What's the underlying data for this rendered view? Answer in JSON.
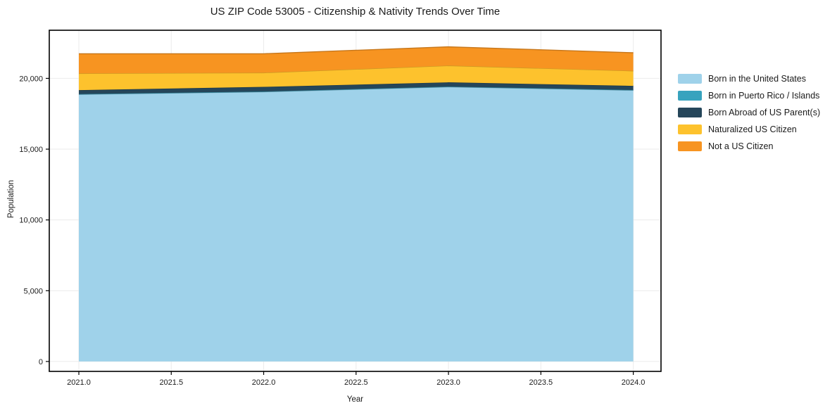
{
  "title": "US ZIP Code 53005 - Citizenship & Nativity Trends Over Time",
  "chart_data": {
    "type": "area",
    "stacked": true,
    "title": "US ZIP Code 53005 - Citizenship & Nativity Trends Over Time",
    "xlabel": "Year",
    "ylabel": "Population",
    "x": [
      2021,
      2022,
      2023,
      2024
    ],
    "xlim": [
      2020.84,
      2024.15
    ],
    "ylim": [
      -700,
      23400
    ],
    "grid": true,
    "legend_position": "right",
    "xticks": {
      "values": [
        2021.0,
        2021.5,
        2022.0,
        2022.5,
        2023.0,
        2023.5,
        2024.0
      ],
      "labels": [
        "2021.0",
        "2021.5",
        "2022.0",
        "2022.5",
        "2023.0",
        "2023.5",
        "2024.0"
      ]
    },
    "yticks": {
      "values": [
        0,
        5000,
        10000,
        15000,
        20000
      ],
      "labels": [
        "0",
        "5,000",
        "10,000",
        "15,000",
        "20,000"
      ]
    },
    "series": [
      {
        "name": "Born in the United States",
        "color": "#9fd2ea",
        "values": [
          18870,
          19050,
          19400,
          19160
        ]
      },
      {
        "name": "Born in Puerto Rico / Islands",
        "color": "#38a3be",
        "values": [
          20,
          20,
          20,
          20
        ]
      },
      {
        "name": "Born Abroad of US Parent(s)",
        "color": "#25465a",
        "values": [
          280,
          330,
          300,
          290
        ]
      },
      {
        "name": "Naturalized US Citizen",
        "color": "#fdc22d",
        "values": [
          1180,
          1000,
          1180,
          1060
        ]
      },
      {
        "name": "Not a US Citizen",
        "color": "#f79421",
        "values": [
          1390,
          1340,
          1330,
          1280
        ]
      }
    ]
  }
}
